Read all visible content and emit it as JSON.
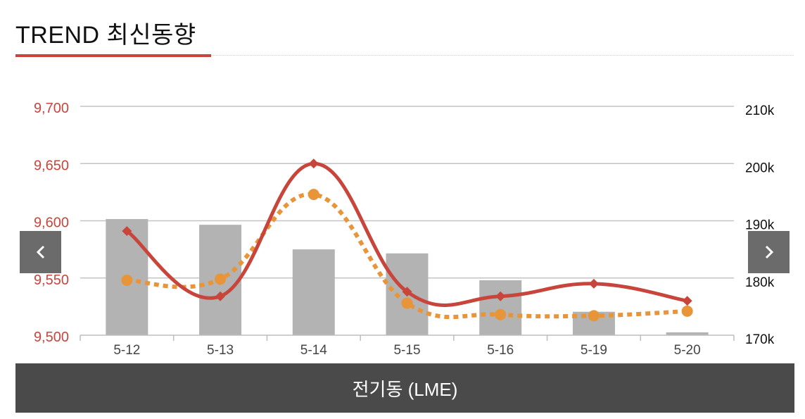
{
  "header": {
    "title": "TREND 최신동향"
  },
  "footer": {
    "label": "전기동 (LME)"
  },
  "colors": {
    "accent": "#c8453c",
    "line_primary": "#c8453c",
    "line_secondary": "#e8953a",
    "bars": "#b3b3b3",
    "nav": "#6b6b6b",
    "footer_bg": "#4a4a4a"
  },
  "icons": {
    "prev": "chevron-left-icon",
    "next": "chevron-right-icon"
  },
  "chart_data": {
    "type": "line",
    "categories": [
      "5-12",
      "5-13",
      "5-14",
      "5-15",
      "5-16",
      "5-19",
      "5-20"
    ],
    "left_axis": {
      "ticks": [
        "9,500",
        "9,550",
        "9,600",
        "9,650",
        "9,700"
      ],
      "ylim": [
        9500,
        9700
      ]
    },
    "right_axis": {
      "ticks": [
        "170k",
        "180k",
        "190k",
        "200k",
        "210k"
      ],
      "ylim": [
        170000,
        210000
      ]
    },
    "series": [
      {
        "kind": "line",
        "axis": "left",
        "style": "solid",
        "marker": "diamond",
        "values": [
          9591,
          9534,
          9650,
          9538,
          9534,
          9545,
          9530
        ]
      },
      {
        "kind": "line",
        "axis": "left",
        "style": "dotted",
        "marker": "circle",
        "values": [
          9548,
          9549,
          9623,
          9528,
          9518,
          9517,
          9521
        ]
      },
      {
        "kind": "bar",
        "axis": "right",
        "values": [
          190300,
          189300,
          185000,
          184300,
          179600,
          174100,
          170500
        ]
      }
    ],
    "grid": true
  }
}
